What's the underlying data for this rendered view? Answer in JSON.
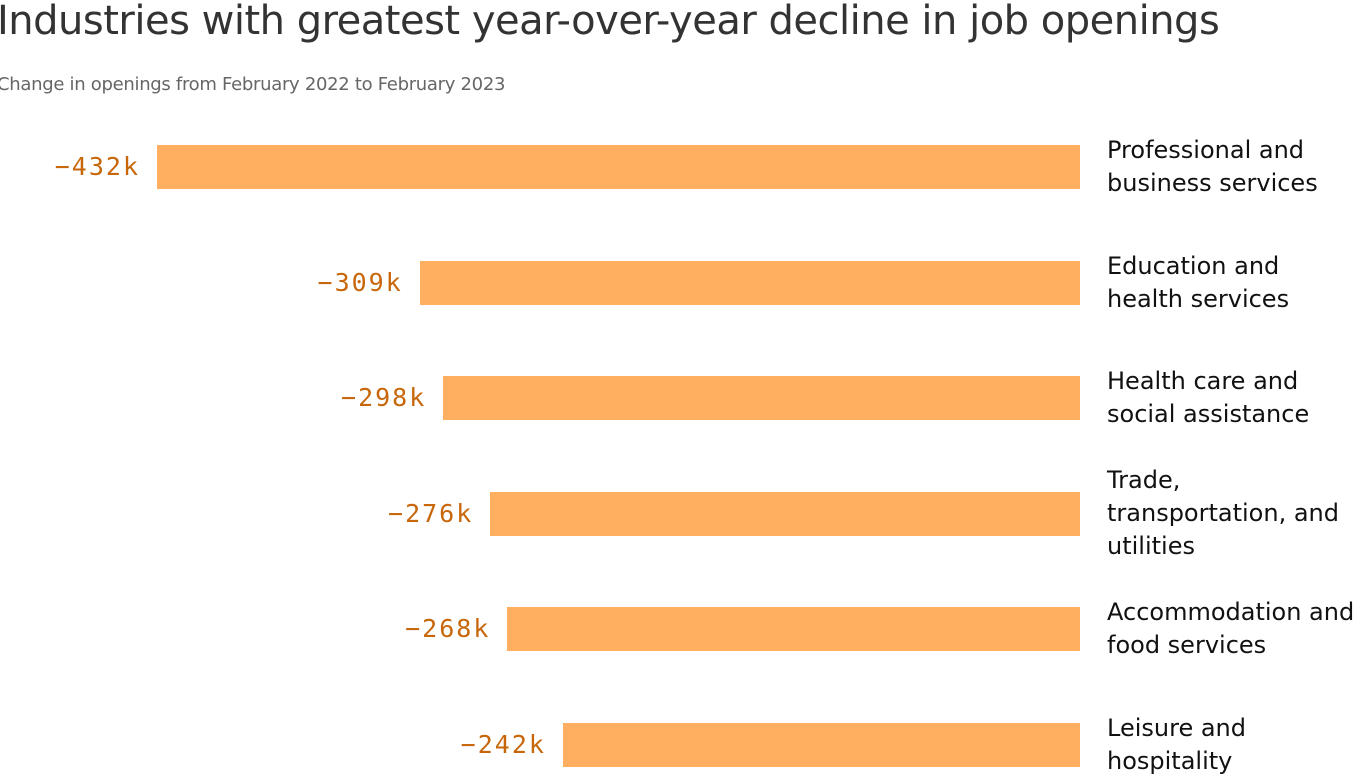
{
  "chart_data": {
    "type": "bar",
    "orientation": "horizontal",
    "title": "Industries with greatest year-over-year decline in job openings",
    "subtitle": "Change in openings from February 2022 to February 2023",
    "categories": [
      "Professional and business services",
      "Education and health services",
      "Health care and social assistance",
      "Trade, transportation, and utilities",
      "Accommodation and food services",
      "Leisure and hospitality"
    ],
    "values": [
      -432,
      -309,
      -298,
      -276,
      -268,
      -242
    ],
    "value_labels": [
      "−432k",
      "−309k",
      "−298k",
      "−276k",
      "−268k",
      "−242k"
    ],
    "color": "#ffaf5f"
  }
}
